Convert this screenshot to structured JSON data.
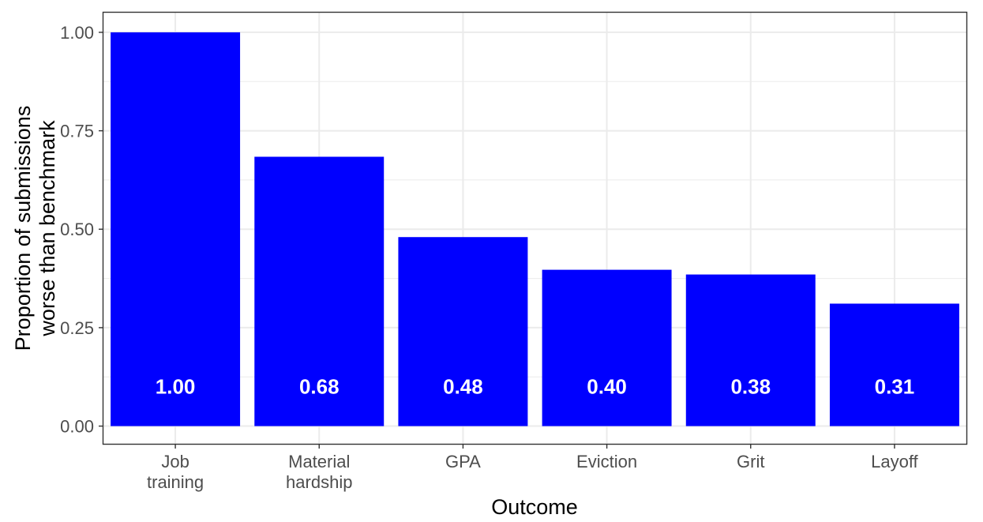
{
  "chart_data": {
    "type": "bar",
    "categories": [
      [
        "Job",
        "training"
      ],
      [
        "Material",
        "hardship"
      ],
      [
        "GPA"
      ],
      [
        "Eviction"
      ],
      [
        "Grit"
      ],
      [
        "Layoff"
      ]
    ],
    "values": [
      1.0,
      0.684,
      0.48,
      0.397,
      0.385,
      0.311
    ],
    "data_labels": [
      "1.00",
      "0.68",
      "0.48",
      "0.40",
      "0.38",
      "0.31"
    ],
    "xlabel": "Outcome",
    "ylabel": [
      "Proportion of submissions",
      "worse than benchmark"
    ],
    "ylim": [
      -0.045,
      1.05
    ],
    "yticks": [
      0.0,
      0.25,
      0.5,
      0.75,
      1.0
    ],
    "ytick_labels": [
      "0.00",
      "0.25",
      "0.50",
      "0.75",
      "1.00"
    ],
    "grid": true,
    "legend": "none",
    "bar_color": "#0000FF"
  }
}
